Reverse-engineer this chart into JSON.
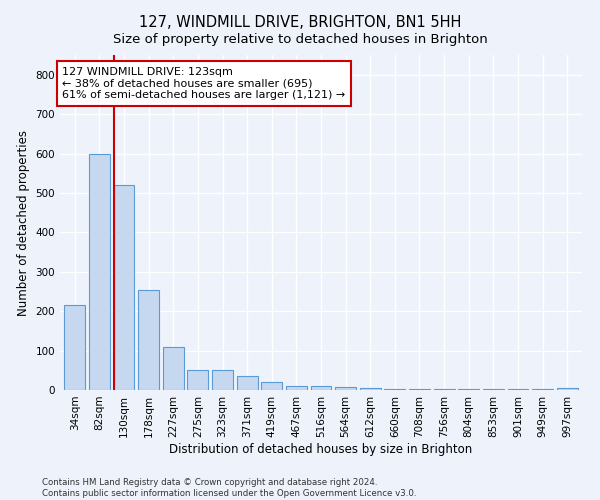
{
  "title": "127, WINDMILL DRIVE, BRIGHTON, BN1 5HH",
  "subtitle": "Size of property relative to detached houses in Brighton",
  "xlabel": "Distribution of detached houses by size in Brighton",
  "ylabel": "Number of detached properties",
  "bar_color": "#c5d8f0",
  "bar_edge_color": "#5b9bd5",
  "categories": [
    "34sqm",
    "82sqm",
    "130sqm",
    "178sqm",
    "227sqm",
    "275sqm",
    "323sqm",
    "371sqm",
    "419sqm",
    "467sqm",
    "516sqm",
    "564sqm",
    "612sqm",
    "660sqm",
    "708sqm",
    "756sqm",
    "804sqm",
    "853sqm",
    "901sqm",
    "949sqm",
    "997sqm"
  ],
  "values": [
    215,
    600,
    520,
    255,
    110,
    50,
    50,
    35,
    20,
    10,
    10,
    8,
    4,
    3,
    3,
    2,
    2,
    2,
    2,
    2,
    5
  ],
  "vline_x_index": 2,
  "annotation_line1": "127 WINDMILL DRIVE: 123sqm",
  "annotation_line2": "← 38% of detached houses are smaller (695)",
  "annotation_line3": "61% of semi-detached houses are larger (1,121) →",
  "annotation_box_color": "#ffffff",
  "annotation_box_edge": "#cc0000",
  "vline_color": "#cc0000",
  "footer1": "Contains HM Land Registry data © Crown copyright and database right 2024.",
  "footer2": "Contains public sector information licensed under the Open Government Licence v3.0.",
  "ylim": [
    0,
    850
  ],
  "yticks": [
    0,
    100,
    200,
    300,
    400,
    500,
    600,
    700,
    800
  ],
  "background_color": "#edf2fb",
  "grid_color": "#ffffff",
  "title_fontsize": 10.5,
  "subtitle_fontsize": 9.5,
  "axis_label_fontsize": 8.5,
  "tick_fontsize": 7.5,
  "annotation_fontsize": 8
}
